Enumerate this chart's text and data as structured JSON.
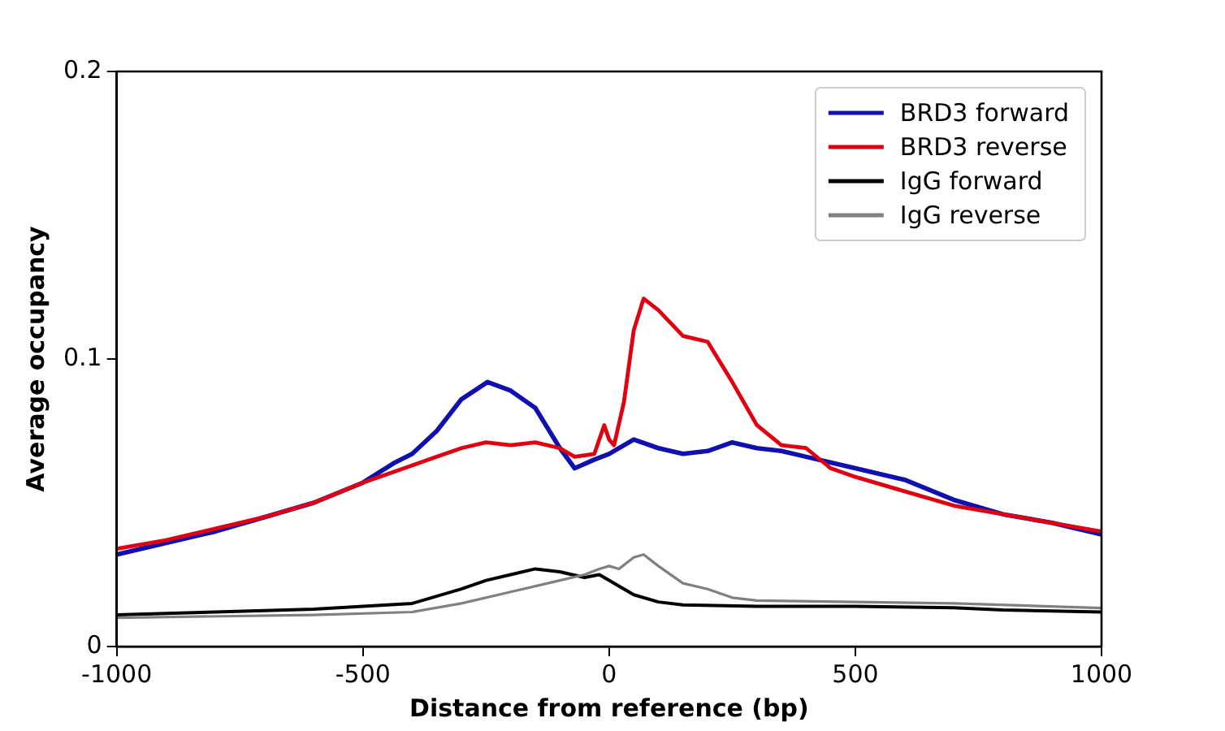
{
  "chart_data": {
    "type": "line",
    "xlabel": "Distance from reference (bp)",
    "ylabel": "Average occupancy",
    "xlim": [
      -1000,
      1000
    ],
    "xticks": [
      -1000,
      -500,
      0,
      500,
      1000
    ],
    "ylim": [
      0,
      0.2
    ],
    "yticks": [
      0,
      0.1,
      0.2
    ],
    "grid": false,
    "legend": "top right",
    "marker": "none",
    "line_style": "solid",
    "series": [
      {
        "name": "BRD3 forward",
        "color": "#1010b0",
        "x": [
          -1000,
          -900,
          -800,
          -700,
          -600,
          -500,
          -435,
          -400,
          -350,
          -300,
          -247,
          -200,
          -150,
          -100,
          -70,
          -30,
          0,
          50,
          100,
          150,
          200,
          250,
          300,
          350,
          400,
          500,
          600,
          700,
          800,
          900,
          1000
        ],
        "values": [
          0.032,
          0.036,
          0.04,
          0.045,
          0.05,
          0.057,
          0.064,
          0.067,
          0.075,
          0.086,
          0.092,
          0.089,
          0.083,
          0.069,
          0.062,
          0.065,
          0.067,
          0.072,
          0.069,
          0.067,
          0.068,
          0.071,
          0.069,
          0.068,
          0.066,
          0.062,
          0.058,
          0.051,
          0.046,
          0.043,
          0.039
        ]
      },
      {
        "name": "BRD3 reverse",
        "color": "#e00010",
        "x": [
          -1000,
          -900,
          -800,
          -700,
          -600,
          -500,
          -400,
          -350,
          -300,
          -250,
          -200,
          -150,
          -100,
          -70,
          -30,
          -10,
          0,
          10,
          30,
          50,
          70,
          100,
          150,
          200,
          250,
          300,
          350,
          400,
          450,
          500,
          600,
          700,
          800,
          900,
          1000
        ],
        "values": [
          0.034,
          0.037,
          0.041,
          0.045,
          0.05,
          0.057,
          0.063,
          0.066,
          0.069,
          0.071,
          0.07,
          0.071,
          0.069,
          0.066,
          0.067,
          0.077,
          0.072,
          0.07,
          0.085,
          0.11,
          0.121,
          0.117,
          0.108,
          0.106,
          0.092,
          0.077,
          0.07,
          0.069,
          0.062,
          0.059,
          0.054,
          0.049,
          0.046,
          0.043,
          0.04
        ]
      },
      {
        "name": "IgG forward",
        "color": "#000000",
        "x": [
          -1000,
          -800,
          -600,
          -400,
          -300,
          -250,
          -200,
          -150,
          -100,
          -50,
          -20,
          0,
          50,
          100,
          150,
          300,
          500,
          700,
          800,
          1000
        ],
        "values": [
          0.011,
          0.012,
          0.013,
          0.015,
          0.02,
          0.023,
          0.025,
          0.027,
          0.026,
          0.024,
          0.025,
          0.023,
          0.018,
          0.0155,
          0.0145,
          0.014,
          0.014,
          0.0135,
          0.0127,
          0.012
        ]
      },
      {
        "name": "IgG reverse",
        "color": "#808080",
        "x": [
          -1000,
          -600,
          -400,
          -300,
          -200,
          -100,
          -50,
          -20,
          0,
          20,
          50,
          70,
          100,
          150,
          200,
          250,
          300,
          500,
          700,
          1000
        ],
        "values": [
          0.01,
          0.011,
          0.012,
          0.015,
          0.019,
          0.023,
          0.025,
          0.027,
          0.028,
          0.027,
          0.031,
          0.032,
          0.028,
          0.022,
          0.02,
          0.017,
          0.016,
          0.0155,
          0.015,
          0.0134
        ]
      }
    ]
  }
}
